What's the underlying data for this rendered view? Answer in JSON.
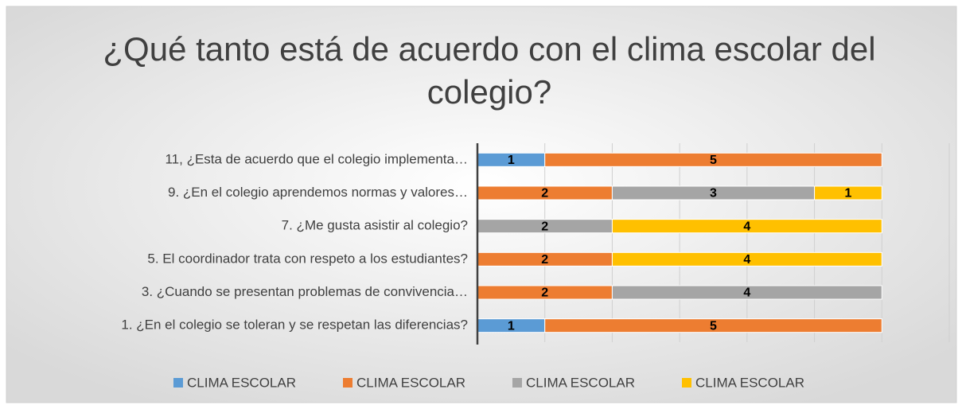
{
  "chart_data": {
    "type": "stacked_barh",
    "title": "¿Qué tanto está de acuerdo con el clima escolar del colegio?",
    "categories": [
      "11, ¿Esta de acuerdo que el colegio implementa…",
      "9. ¿En el colegio aprendemos normas y valores…",
      "7. ¿Me gusta asistir al colegio?",
      "5. El coordinador trata con respeto a los estudiantes?",
      "3. ¿Cuando se presentan problemas de convivencia…",
      "1. ¿En el colegio se toleran y se respetan las diferencias?"
    ],
    "series": [
      {
        "name": "CLIMA ESCOLAR",
        "color": "#5b9bd5",
        "values": [
          1,
          null,
          null,
          null,
          null,
          1
        ]
      },
      {
        "name": "CLIMA ESCOLAR",
        "color": "#ed7d31",
        "values": [
          5,
          2,
          null,
          2,
          2,
          5
        ]
      },
      {
        "name": "CLIMA ESCOLAR",
        "color": "#a5a5a5",
        "values": [
          null,
          3,
          2,
          null,
          4,
          null
        ]
      },
      {
        "name": "CLIMA ESCOLAR",
        "color": "#ffc000",
        "values": [
          null,
          1,
          4,
          4,
          null,
          null
        ]
      }
    ],
    "xlim": [
      0,
      7
    ],
    "xticks": [
      0,
      1,
      2,
      3,
      4,
      5,
      6,
      7
    ],
    "xtick_labels": false,
    "grid": true,
    "legend": "bottom"
  }
}
